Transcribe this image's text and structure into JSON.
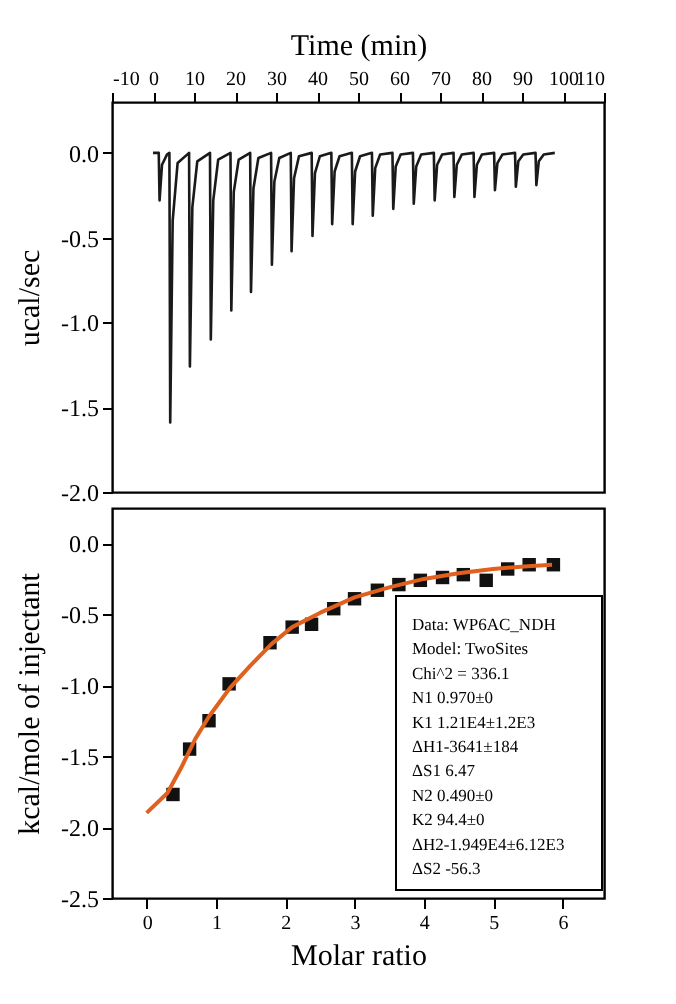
{
  "chart_data": [
    {
      "type": "line",
      "xlabel": "Time (min)",
      "ylabel": "ucal/sec",
      "xlim": [
        -10,
        110
      ],
      "xticks": [
        -10,
        0,
        10,
        20,
        30,
        40,
        50,
        60,
        70,
        80,
        90,
        100,
        110
      ],
      "ylim": [
        -2.0,
        0.3
      ],
      "yticks": [
        {
          "value": -2.0,
          "label": "-2.0"
        },
        {
          "value": -1.5,
          "label": "-1.5"
        },
        {
          "value": -1.0,
          "label": "-1.0"
        },
        {
          "value": -0.5,
          "label": "-0.5"
        },
        {
          "value": 0.0,
          "label": "0.0"
        }
      ],
      "grid": false,
      "marker": "none",
      "line_style": "solid",
      "series": [
        {
          "color": "#1a1a1a",
          "x": [
            0,
            1.4,
            1.6,
            2.2,
            3.4,
            4.0,
            4.2,
            4.8,
            6.0,
            8.8,
            9.0,
            9.6,
            10.8,
            13.9,
            14.1,
            14.7,
            15.9,
            18.9,
            19.1,
            19.7,
            20.9,
            23.7,
            23.9,
            24.5,
            25.7,
            28.8,
            29.0,
            29.6,
            30.8,
            33.6,
            33.8,
            34.4,
            35.6,
            38.7,
            38.9,
            39.5,
            40.7,
            43.5,
            43.7,
            44.3,
            45.5,
            48.5,
            48.7,
            49.3,
            50.5,
            53.4,
            53.6,
            54.2,
            55.4,
            58.4,
            58.6,
            59.2,
            60.4,
            63.4,
            63.6,
            64.2,
            65.4,
            68.5,
            68.7,
            69.3,
            70.5,
            73.3,
            73.5,
            74.1,
            75.3,
            78.2,
            78.4,
            79.0,
            80.2,
            83.2,
            83.4,
            84.0,
            85.2,
            88.3,
            88.5,
            89.1,
            90.3,
            93.3,
            93.5,
            94.1,
            95.3,
            98
          ],
          "values": [
            0,
            0,
            -0.28,
            -0.07,
            -0.01,
            0,
            -1.59,
            -0.4,
            -0.06,
            0,
            -1.26,
            -0.32,
            -0.05,
            0,
            -1.1,
            -0.28,
            -0.04,
            0,
            -0.93,
            -0.23,
            -0.04,
            0,
            -0.82,
            -0.21,
            -0.03,
            0,
            -0.66,
            -0.17,
            -0.03,
            0,
            -0.58,
            -0.15,
            -0.02,
            0,
            -0.49,
            -0.12,
            -0.02,
            0,
            -0.42,
            -0.11,
            -0.02,
            0,
            -0.42,
            -0.11,
            -0.02,
            0,
            -0.37,
            -0.09,
            -0.01,
            0,
            -0.33,
            -0.08,
            -0.01,
            0,
            -0.3,
            -0.08,
            -0.01,
            0,
            -0.28,
            -0.07,
            -0.01,
            0,
            -0.26,
            -0.07,
            -0.01,
            0,
            -0.26,
            -0.07,
            -0.01,
            0,
            -0.22,
            -0.06,
            -0.01,
            0,
            -0.2,
            -0.05,
            -0.01,
            0,
            -0.19,
            -0.05,
            -0.01,
            0
          ]
        }
      ]
    },
    {
      "type": "scatter",
      "xlabel": "Molar ratio",
      "ylabel": "kcal/mole of injectant",
      "xlim": [
        -0.5,
        6.6
      ],
      "xticks": [
        0,
        1,
        2,
        3,
        4,
        5,
        6
      ],
      "ylim": [
        -2.5,
        0.25
      ],
      "yticks": [
        {
          "value": -2.5,
          "label": "-2.5"
        },
        {
          "value": -2.0,
          "label": "-2.0"
        },
        {
          "value": -1.5,
          "label": "-1.5"
        },
        {
          "value": -1.0,
          "label": "-1.0"
        },
        {
          "value": -0.5,
          "label": "-0.5"
        },
        {
          "value": 0.0,
          "label": "0.0"
        }
      ],
      "grid": false,
      "series": [
        {
          "type": "scatter",
          "marker": "square",
          "color": "#111111",
          "x": [
            0.38,
            0.62,
            0.9,
            1.19,
            1.78,
            2.1,
            2.38,
            2.7,
            3.0,
            3.33,
            3.64,
            3.95,
            4.27,
            4.57,
            4.9,
            5.21,
            5.52,
            5.87
          ],
          "values": [
            -1.77,
            -1.45,
            -1.25,
            -0.99,
            -0.7,
            -0.59,
            -0.57,
            -0.46,
            -0.39,
            -0.33,
            -0.29,
            -0.26,
            -0.24,
            -0.22,
            -0.26,
            -0.18,
            -0.15,
            -0.15
          ]
        },
        {
          "type": "line",
          "marker": "none",
          "line_style": "solid",
          "color": "#e0601e",
          "x": [
            0.0,
            0.3,
            0.5,
            0.7,
            0.9,
            1.2,
            1.5,
            1.8,
            2.1,
            2.5,
            3.0,
            3.5,
            4.0,
            4.5,
            5.0,
            5.5,
            5.85
          ],
          "values": [
            -1.9,
            -1.76,
            -1.58,
            -1.38,
            -1.22,
            -1.02,
            -0.86,
            -0.71,
            -0.59,
            -0.49,
            -0.38,
            -0.31,
            -0.25,
            -0.21,
            -0.18,
            -0.16,
            -0.15
          ]
        }
      ],
      "annotations": [
        "Data: WP6AC_NDH",
        "Model: TwoSites",
        "Chi^2 = 336.1",
        "N1   0.970±0",
        "K1   1.21E4±1.2E3",
        "ΔH1-3641±184",
        "ΔS1 6.47",
        "N2   0.490±0",
        "K2   94.4±0",
        "ΔH2-1.949E4±6.12E3",
        "ΔS2 -56.3"
      ]
    }
  ]
}
